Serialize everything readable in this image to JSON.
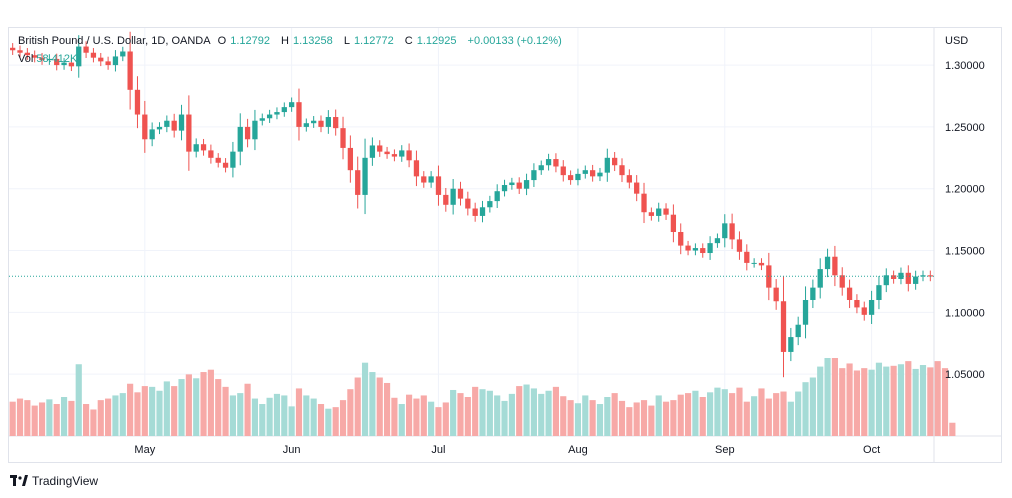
{
  "header": {
    "symbol": "British Pound / U.S. Dollar, 1D, OANDA",
    "o_label": "O",
    "o_value": "1.12792",
    "h_label": "H",
    "h_value": "1.13258",
    "l_label": "L",
    "l_value": "1.12772",
    "c_label": "C",
    "c_value": "1.12925",
    "change": "+0.00133 (+0.12%)",
    "vol_label": "Vol",
    "vol_value": "58.412K"
  },
  "currency": "USD",
  "branding": "TradingView",
  "colors": {
    "up": "#26a69a",
    "down": "#ef5350",
    "up_vol": "#a5dbd6",
    "down_vol": "#f7a9a7",
    "grid": "#f0f3fa",
    "border": "#e0e3eb",
    "last": "#26a69a"
  },
  "chart_data": {
    "type": "candlestick",
    "ylim": [
      1.0,
      1.33
    ],
    "y_ticks": [
      "1.30000",
      "1.25000",
      "1.20000",
      "1.15000",
      "1.10000",
      "1.05000"
    ],
    "y_tick_values": [
      1.3,
      1.25,
      1.2,
      1.15,
      1.1,
      1.05
    ],
    "x_ticks": [
      "May",
      "Jun",
      "Jul",
      "Aug",
      "Sep",
      "Oct"
    ],
    "x_tick_index": [
      18,
      38,
      58,
      77,
      97,
      117
    ],
    "last_price": 1.12925,
    "closes": [
      1.312,
      1.31,
      1.308,
      1.306,
      1.304,
      1.305,
      1.3,
      1.302,
      1.299,
      1.315,
      1.31,
      1.306,
      1.303,
      1.3,
      1.307,
      1.311,
      1.28,
      1.26,
      1.24,
      1.248,
      1.25,
      1.255,
      1.247,
      1.26,
      1.23,
      1.236,
      1.231,
      1.225,
      1.221,
      1.217,
      1.23,
      1.25,
      1.24,
      1.255,
      1.257,
      1.26,
      1.262,
      1.266,
      1.27,
      1.25,
      1.253,
      1.255,
      1.25,
      1.258,
      1.249,
      1.233,
      1.215,
      1.195,
      1.225,
      1.235,
      1.23,
      1.228,
      1.226,
      1.231,
      1.223,
      1.21,
      1.205,
      1.21,
      1.195,
      1.187,
      1.2,
      1.192,
      1.184,
      1.178,
      1.185,
      1.19,
      1.198,
      1.203,
      1.205,
      1.2,
      1.207,
      1.215,
      1.219,
      1.224,
      1.218,
      1.211,
      1.207,
      1.212,
      1.215,
      1.21,
      1.213,
      1.225,
      1.219,
      1.211,
      1.205,
      1.196,
      1.181,
      1.178,
      1.184,
      1.179,
      1.165,
      1.154,
      1.15,
      1.152,
      1.148,
      1.156,
      1.16,
      1.172,
      1.159,
      1.149,
      1.14,
      1.14,
      1.138,
      1.12,
      1.109,
      1.068,
      1.08,
      1.09,
      1.11,
      1.12,
      1.135,
      1.145,
      1.13,
      1.12,
      1.11,
      1.104,
      1.098,
      1.11,
      1.122,
      1.13,
      1.127,
      1.132,
      1.123,
      1.129,
      1.13,
      1.129
    ],
    "volume": [
      0.44,
      0.48,
      0.46,
      0.39,
      0.43,
      0.47,
      0.41,
      0.5,
      0.45,
      0.92,
      0.41,
      0.34,
      0.46,
      0.48,
      0.52,
      0.55,
      0.67,
      0.56,
      0.64,
      0.63,
      0.58,
      0.7,
      0.64,
      0.73,
      0.79,
      0.74,
      0.82,
      0.85,
      0.73,
      0.63,
      0.52,
      0.55,
      0.67,
      0.48,
      0.41,
      0.49,
      0.54,
      0.52,
      0.38,
      0.61,
      0.52,
      0.48,
      0.41,
      0.35,
      0.37,
      0.46,
      0.6,
      0.75,
      0.94,
      0.82,
      0.75,
      0.68,
      0.49,
      0.41,
      0.53,
      0.48,
      0.52,
      0.44,
      0.37,
      0.43,
      0.59,
      0.55,
      0.5,
      0.63,
      0.6,
      0.58,
      0.52,
      0.45,
      0.54,
      0.64,
      0.66,
      0.61,
      0.54,
      0.58,
      0.63,
      0.51,
      0.46,
      0.42,
      0.52,
      0.46,
      0.41,
      0.5,
      0.55,
      0.45,
      0.37,
      0.43,
      0.46,
      0.39,
      0.52,
      0.44,
      0.46,
      0.53,
      0.55,
      0.58,
      0.5,
      0.56,
      0.62,
      0.6,
      0.55,
      0.62,
      0.44,
      0.51,
      0.61,
      0.48,
      0.55,
      0.57,
      0.44,
      0.57,
      0.69,
      0.75,
      0.89,
      1.0,
      1.0,
      0.87,
      0.93,
      0.84,
      0.87,
      0.85,
      0.94,
      0.89,
      0.9,
      0.92,
      0.96,
      0.86,
      0.91,
      0.88,
      0.96,
      0.87,
      0.17
    ]
  }
}
